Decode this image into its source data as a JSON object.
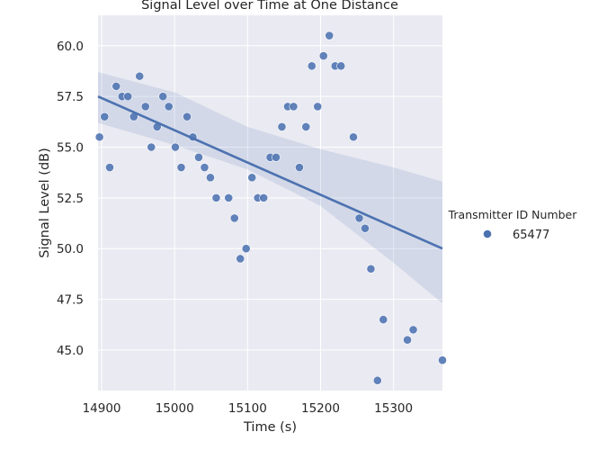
{
  "chart_data": {
    "type": "scatter",
    "title": "Signal Level over Time at One Distance",
    "xlabel": "Time (s)",
    "ylabel": "Signal Level (dB)",
    "xlim": [
      14895,
      15367
    ],
    "ylim": [
      43.0,
      61.5
    ],
    "xticks": [
      14900,
      15000,
      15100,
      15200,
      15300
    ],
    "xtick_labels": [
      "14900",
      "15000",
      "15100",
      "15200",
      "15300"
    ],
    "yticks": [
      45.0,
      47.5,
      50.0,
      52.5,
      55.0,
      57.5,
      60.0
    ],
    "ytick_labels": [
      "45.0",
      "47.5",
      "50.0",
      "52.5",
      "55.0",
      "57.5",
      "60.0"
    ],
    "grid": true,
    "legend": {
      "title": "Transmitter ID Number",
      "placement": "right",
      "entries": [
        "65477"
      ]
    },
    "regression": {
      "shown": true,
      "start": {
        "x": 14895,
        "y": 57.5
      },
      "end": {
        "x": 15367,
        "y": 50.0
      },
      "ci_upper": [
        [
          14895,
          58.7
        ],
        [
          15000,
          57.7
        ],
        [
          15100,
          56.0
        ],
        [
          15200,
          54.9
        ],
        [
          15300,
          54.0
        ],
        [
          15367,
          53.3
        ]
      ],
      "ci_lower": [
        [
          14895,
          56.2
        ],
        [
          15000,
          55.1
        ],
        [
          15100,
          53.9
        ],
        [
          15200,
          52.1
        ],
        [
          15300,
          49.3
        ],
        [
          15367,
          47.3
        ]
      ]
    },
    "series": [
      {
        "name": "65477",
        "color": "#4c72b0",
        "points": [
          {
            "x": 14897,
            "y": 55.5
          },
          {
            "x": 14904,
            "y": 56.5
          },
          {
            "x": 14911,
            "y": 54.0
          },
          {
            "x": 14920,
            "y": 58.0
          },
          {
            "x": 14928,
            "y": 57.5
          },
          {
            "x": 14936,
            "y": 57.5
          },
          {
            "x": 14944,
            "y": 56.5
          },
          {
            "x": 14952,
            "y": 58.5
          },
          {
            "x": 14960,
            "y": 57.0
          },
          {
            "x": 14968,
            "y": 55.0
          },
          {
            "x": 14976,
            "y": 56.0
          },
          {
            "x": 14984,
            "y": 57.5
          },
          {
            "x": 14992,
            "y": 57.0
          },
          {
            "x": 15001,
            "y": 55.0
          },
          {
            "x": 15009,
            "y": 54.0
          },
          {
            "x": 15017,
            "y": 56.5
          },
          {
            "x": 15025,
            "y": 55.5
          },
          {
            "x": 15033,
            "y": 54.5
          },
          {
            "x": 15041,
            "y": 54.0
          },
          {
            "x": 15049,
            "y": 53.5
          },
          {
            "x": 15057,
            "y": 52.5
          },
          {
            "x": 15074,
            "y": 52.5
          },
          {
            "x": 15082,
            "y": 51.5
          },
          {
            "x": 15090,
            "y": 49.5
          },
          {
            "x": 15098,
            "y": 50.0
          },
          {
            "x": 15106,
            "y": 53.5
          },
          {
            "x": 15114,
            "y": 52.5
          },
          {
            "x": 15122,
            "y": 52.5
          },
          {
            "x": 15131,
            "y": 54.5
          },
          {
            "x": 15139,
            "y": 54.5
          },
          {
            "x": 15147,
            "y": 56.0
          },
          {
            "x": 15155,
            "y": 57.0
          },
          {
            "x": 15163,
            "y": 57.0
          },
          {
            "x": 15171,
            "y": 54.0
          },
          {
            "x": 15180,
            "y": 56.0
          },
          {
            "x": 15188,
            "y": 59.0
          },
          {
            "x": 15196,
            "y": 57.0
          },
          {
            "x": 15204,
            "y": 59.5
          },
          {
            "x": 15212,
            "y": 60.5
          },
          {
            "x": 15220,
            "y": 59.0
          },
          {
            "x": 15228,
            "y": 59.0
          },
          {
            "x": 15245,
            "y": 55.5
          },
          {
            "x": 15253,
            "y": 51.5
          },
          {
            "x": 15261,
            "y": 51.0
          },
          {
            "x": 15269,
            "y": 49.0
          },
          {
            "x": 15278,
            "y": 43.5
          },
          {
            "x": 15286,
            "y": 46.5
          },
          {
            "x": 15319,
            "y": 45.5
          },
          {
            "x": 15327,
            "y": 46.0
          },
          {
            "x": 15367,
            "y": 44.5
          }
        ]
      }
    ]
  }
}
